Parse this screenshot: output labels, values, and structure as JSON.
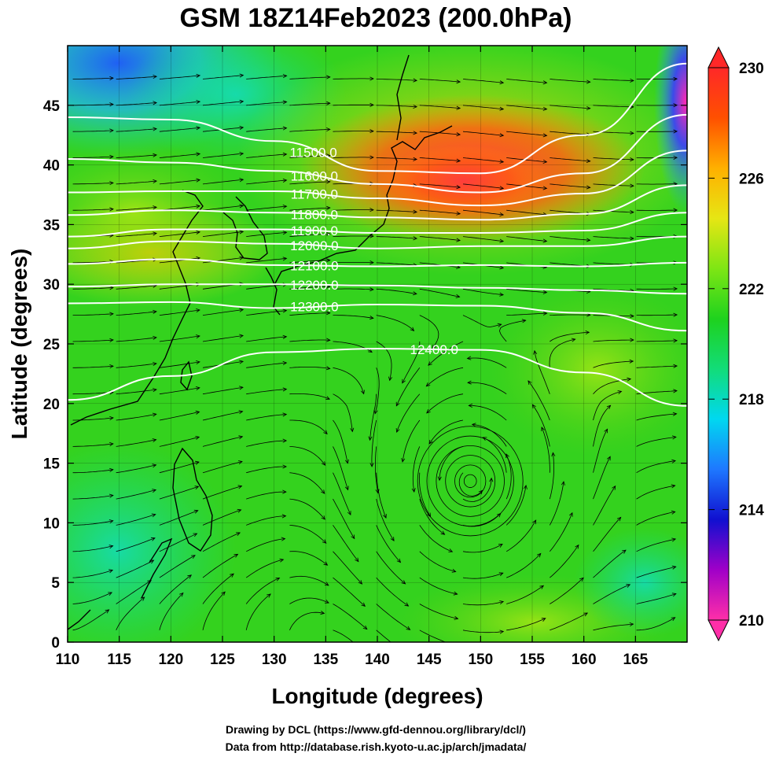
{
  "chart_data": {
    "type": "heatmap",
    "title": "GSM 18Z14Feb2023 (200.0hPa)",
    "xlabel": "Longitude (degrees)",
    "ylabel": "Latitude  (degrees)",
    "xlim": [
      110,
      170
    ],
    "ylim": [
      0,
      50
    ],
    "x_ticks": [
      110,
      115,
      120,
      125,
      130,
      135,
      140,
      145,
      150,
      155,
      160,
      165
    ],
    "y_ticks": [
      0,
      5,
      10,
      15,
      20,
      25,
      30,
      35,
      40,
      45
    ],
    "colorbar": {
      "range": [
        210,
        230
      ],
      "tick_labels": [
        "230",
        "226",
        "222",
        "218",
        "214",
        "210"
      ],
      "colors": [
        "#ff2fa8",
        "#a000c8",
        "#1010d0",
        "#1e78ff",
        "#00d8f0",
        "#12dc78",
        "#1ed21e",
        "#7ee614",
        "#e6e614",
        "#ffb000",
        "#ff5000",
        "#ff2828"
      ]
    },
    "contours": {
      "variable": "geopotential height",
      "levels": [
        11500,
        11600,
        11700,
        11800,
        11900,
        12000,
        12100,
        12200,
        12300,
        12400
      ],
      "labels": [
        "11500.0",
        "11600.0",
        "11700.0",
        "11800.0",
        "11900.0",
        "12000.0",
        "12100.0",
        "12200.0",
        "12300.0",
        "12400.0"
      ],
      "lines": [
        {
          "level": 11500,
          "lon": [
            110,
            120,
            130,
            140,
            150,
            160,
            170
          ],
          "lat": [
            44.0,
            43.8,
            42.0,
            39.5,
            39.3,
            42.5,
            48.5
          ]
        },
        {
          "level": 11600,
          "lon": [
            110,
            120,
            130,
            140,
            150,
            160,
            170
          ],
          "lat": [
            40.5,
            40.2,
            39.5,
            38.4,
            37.7,
            39.3,
            44.2
          ]
        },
        {
          "level": 11700,
          "lon": [
            110,
            120,
            130,
            140,
            150,
            160,
            170
          ],
          "lat": [
            37.7,
            37.8,
            37.8,
            37.2,
            36.6,
            37.6,
            41.2
          ]
        },
        {
          "level": 11800,
          "lon": [
            110,
            120,
            130,
            140,
            150,
            160,
            170
          ],
          "lat": [
            35.8,
            36.2,
            36.0,
            35.6,
            35.4,
            35.9,
            38.3
          ]
        },
        {
          "level": 11900,
          "lon": [
            110,
            120,
            130,
            140,
            150,
            160,
            170
          ],
          "lat": [
            34.0,
            34.6,
            34.6,
            34.3,
            34.3,
            34.5,
            36.0
          ]
        },
        {
          "level": 12000,
          "lon": [
            110,
            120,
            130,
            140,
            150,
            160,
            170
          ],
          "lat": [
            33.0,
            33.6,
            33.4,
            33.0,
            33.2,
            33.2,
            34.0
          ]
        },
        {
          "level": 12100,
          "lon": [
            110,
            120,
            130,
            140,
            150,
            160,
            170
          ],
          "lat": [
            31.7,
            32.1,
            31.6,
            31.5,
            31.6,
            31.5,
            31.8
          ]
        },
        {
          "level": 12200,
          "lon": [
            110,
            120,
            130,
            140,
            150,
            160,
            170
          ],
          "lat": [
            29.8,
            30.0,
            30.0,
            29.9,
            29.7,
            29.5,
            29.2
          ]
        },
        {
          "level": 12300,
          "lon": [
            110,
            120,
            130,
            140,
            150,
            160,
            170
          ],
          "lat": [
            28.4,
            28.5,
            28.0,
            28.3,
            28.2,
            27.6,
            26.1
          ]
        },
        {
          "level": 12400,
          "lon": [
            110,
            120,
            130,
            140,
            150,
            160,
            170
          ],
          "lat": [
            20.3,
            22.3,
            24.3,
            24.6,
            24.5,
            22.6,
            19.8
          ]
        }
      ]
    },
    "features": {
      "vortex_center": {
        "lon": 149,
        "lat": 13.5
      }
    }
  },
  "credits": {
    "line1": "Drawing by DCL (https://www.gfd-dennou.org/library/dcl/)",
    "line2": "Data from http://database.rish.kyoto-u.ac.jp/arch/jmadata/"
  }
}
